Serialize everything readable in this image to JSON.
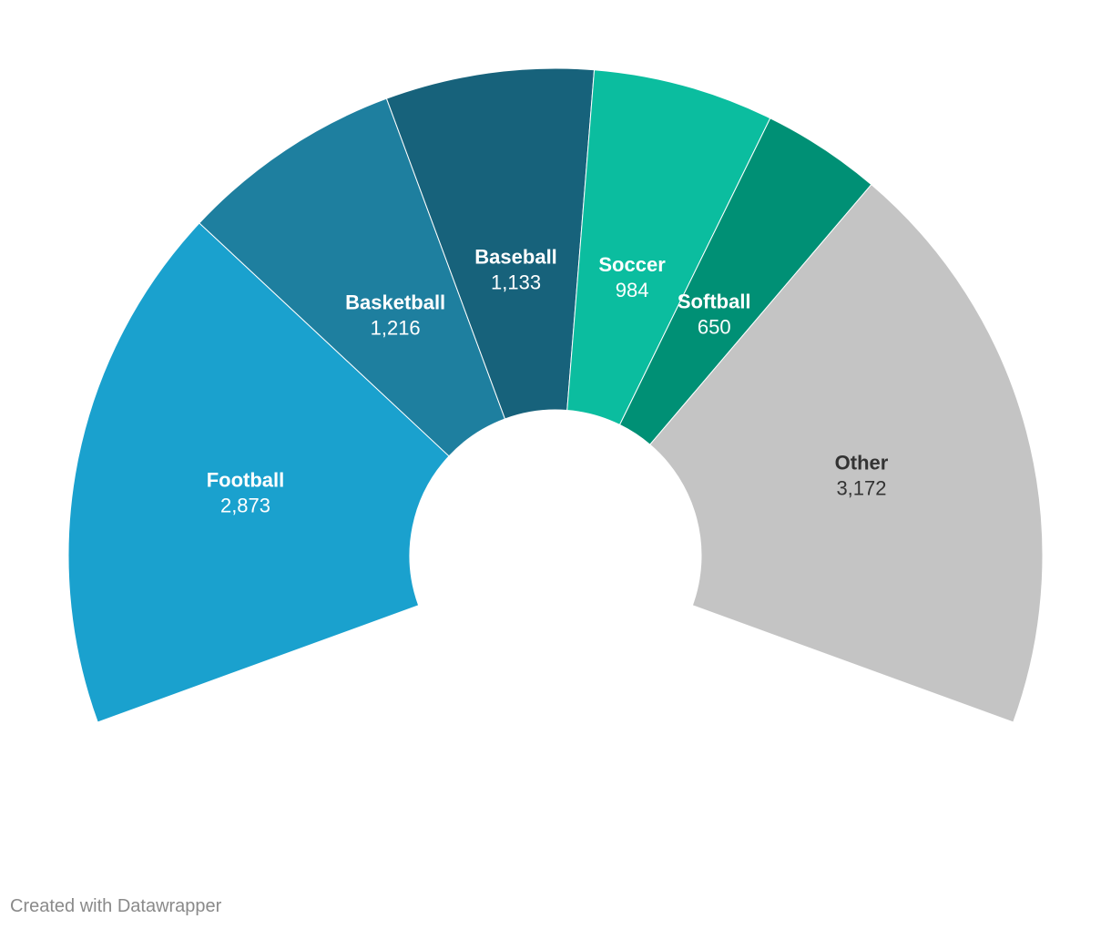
{
  "chart_data": {
    "type": "pie",
    "variant": "semi-donut",
    "categories": [
      "Football",
      "Basketball",
      "Baseball",
      "Soccer",
      "Softball",
      "Other"
    ],
    "values": [
      2873,
      1216,
      1133,
      984,
      650,
      3172
    ],
    "value_labels": [
      "2,873",
      "1,216",
      "1,133",
      "984",
      "650",
      "3,172"
    ],
    "colors": [
      "#1aa1ce",
      "#1e7f9f",
      "#17627b",
      "#0bbd9f",
      "#009075",
      "#c4c4c4"
    ],
    "label_colors": [
      "#ffffff",
      "#ffffff",
      "#ffffff",
      "#ffffff",
      "#ffffff",
      "#333333"
    ],
    "title": "",
    "legend": "none"
  },
  "footer": {
    "credit": "Created with Datawrapper"
  }
}
